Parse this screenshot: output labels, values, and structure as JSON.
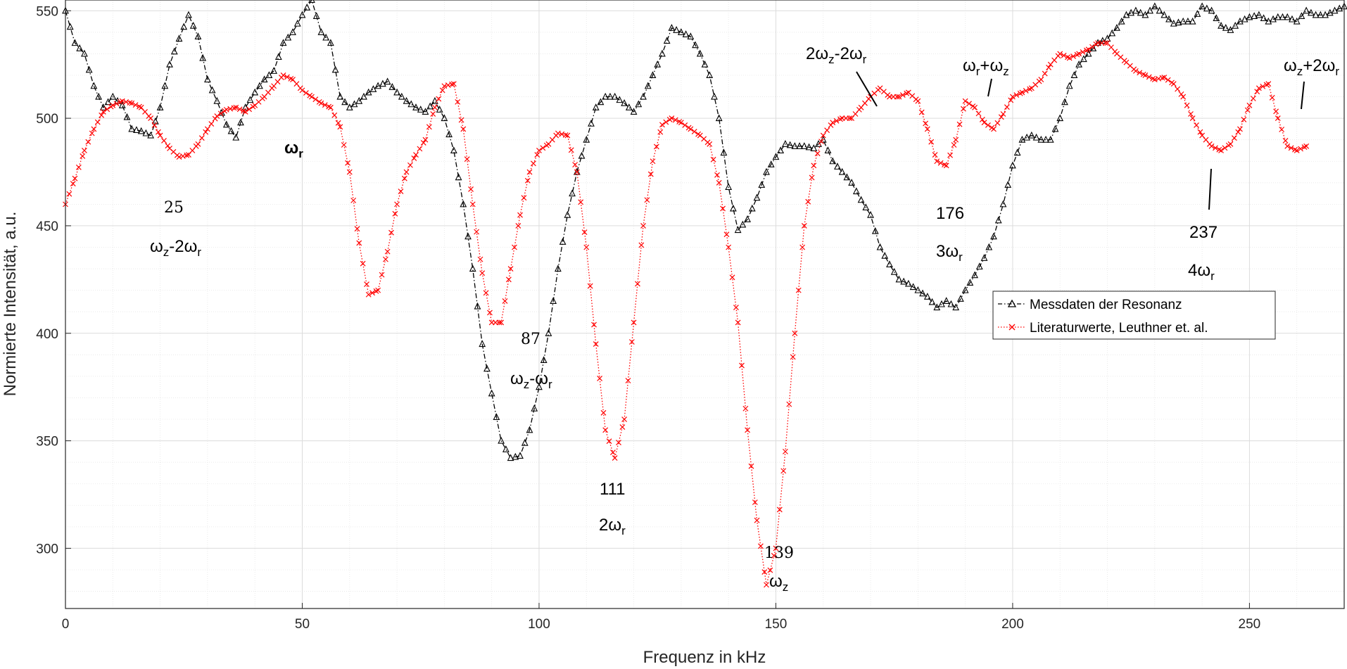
{
  "chart_data": {
    "type": "line",
    "xlabel": "Frequenz in kHz",
    "ylabel": "Normierte Intensität, a.u.",
    "xlim": [
      0,
      270
    ],
    "ylim": [
      272,
      555
    ],
    "xticks": [
      0,
      50,
      100,
      150,
      200,
      250
    ],
    "yticks": [
      300,
      350,
      400,
      450,
      500,
      550
    ],
    "grid": true,
    "minor_grid": true,
    "legend_position": "middle-right",
    "series": [
      {
        "name": "Messdaten der Resonanz",
        "color": "#000000",
        "line_style": "dash-dot",
        "marker": "triangle-up",
        "anchors": [
          [
            0,
            550
          ],
          [
            2,
            535
          ],
          [
            4,
            530
          ],
          [
            6,
            515
          ],
          [
            8,
            505
          ],
          [
            10,
            510
          ],
          [
            12,
            506
          ],
          [
            14,
            495
          ],
          [
            16,
            494
          ],
          [
            18,
            492
          ],
          [
            20,
            505
          ],
          [
            22,
            525
          ],
          [
            24,
            537
          ],
          [
            26,
            548
          ],
          [
            28,
            538
          ],
          [
            30,
            518
          ],
          [
            32,
            508
          ],
          [
            34,
            497
          ],
          [
            36,
            491
          ],
          [
            38,
            505
          ],
          [
            40,
            512
          ],
          [
            42,
            518
          ],
          [
            44,
            522
          ],
          [
            46,
            535
          ],
          [
            48,
            540
          ],
          [
            50,
            548
          ],
          [
            52,
            555
          ],
          [
            54,
            540
          ],
          [
            56,
            535
          ],
          [
            58,
            510
          ],
          [
            60,
            505
          ],
          [
            62,
            508
          ],
          [
            64,
            512
          ],
          [
            66,
            515
          ],
          [
            68,
            517
          ],
          [
            70,
            512
          ],
          [
            72,
            508
          ],
          [
            74,
            505
          ],
          [
            76,
            503
          ],
          [
            78,
            508
          ],
          [
            80,
            500
          ],
          [
            82,
            485
          ],
          [
            84,
            460
          ],
          [
            86,
            430
          ],
          [
            88,
            395
          ],
          [
            90,
            372
          ],
          [
            92,
            350
          ],
          [
            94,
            342
          ],
          [
            96,
            343
          ],
          [
            98,
            355
          ],
          [
            100,
            375
          ],
          [
            102,
            400
          ],
          [
            104,
            430
          ],
          [
            106,
            455
          ],
          [
            108,
            475
          ],
          [
            110,
            490
          ],
          [
            112,
            505
          ],
          [
            114,
            510
          ],
          [
            116,
            510
          ],
          [
            118,
            507
          ],
          [
            120,
            503
          ],
          [
            122,
            510
          ],
          [
            124,
            520
          ],
          [
            126,
            530
          ],
          [
            128,
            542
          ],
          [
            130,
            540
          ],
          [
            132,
            538
          ],
          [
            134,
            530
          ],
          [
            136,
            520
          ],
          [
            138,
            500
          ],
          [
            140,
            468
          ],
          [
            142,
            448
          ],
          [
            144,
            453
          ],
          [
            146,
            463
          ],
          [
            148,
            475
          ],
          [
            150,
            482
          ],
          [
            152,
            488
          ],
          [
            154,
            487
          ],
          [
            156,
            487
          ],
          [
            158,
            486
          ],
          [
            160,
            490
          ],
          [
            162,
            480
          ],
          [
            164,
            475
          ],
          [
            166,
            470
          ],
          [
            168,
            462
          ],
          [
            170,
            455
          ],
          [
            172,
            440
          ],
          [
            174,
            432
          ],
          [
            176,
            425
          ],
          [
            178,
            423
          ],
          [
            180,
            420
          ],
          [
            182,
            417
          ],
          [
            184,
            412
          ],
          [
            186,
            415
          ],
          [
            188,
            412
          ],
          [
            190,
            420
          ],
          [
            192,
            427
          ],
          [
            194,
            435
          ],
          [
            196,
            445
          ],
          [
            198,
            460
          ],
          [
            200,
            478
          ],
          [
            202,
            490
          ],
          [
            204,
            492
          ],
          [
            206,
            490
          ],
          [
            208,
            490
          ],
          [
            210,
            500
          ],
          [
            212,
            515
          ],
          [
            214,
            525
          ],
          [
            216,
            530
          ],
          [
            218,
            535
          ],
          [
            220,
            537
          ],
          [
            222,
            542
          ],
          [
            224,
            548
          ],
          [
            226,
            550
          ],
          [
            228,
            548
          ],
          [
            230,
            552
          ],
          [
            232,
            548
          ],
          [
            234,
            544
          ],
          [
            236,
            545
          ],
          [
            238,
            545
          ],
          [
            240,
            552
          ],
          [
            242,
            550
          ],
          [
            244,
            543
          ],
          [
            246,
            541
          ],
          [
            248,
            545
          ],
          [
            250,
            547
          ],
          [
            252,
            548
          ],
          [
            254,
            545
          ],
          [
            256,
            547
          ],
          [
            258,
            547
          ],
          [
            260,
            545
          ],
          [
            262,
            550
          ],
          [
            264,
            548
          ],
          [
            266,
            548
          ],
          [
            268,
            550
          ],
          [
            270,
            552
          ]
        ]
      },
      {
        "name": "Literaturwerte, Leuthner et. al.",
        "color": "#ff0000",
        "line_style": "dotted",
        "marker": "x",
        "anchors": [
          [
            0,
            460
          ],
          [
            2,
            472
          ],
          [
            4,
            485
          ],
          [
            6,
            495
          ],
          [
            8,
            503
          ],
          [
            10,
            506
          ],
          [
            12,
            508
          ],
          [
            14,
            507
          ],
          [
            16,
            505
          ],
          [
            18,
            500
          ],
          [
            20,
            492
          ],
          [
            22,
            486
          ],
          [
            24,
            482
          ],
          [
            26,
            483
          ],
          [
            28,
            488
          ],
          [
            30,
            495
          ],
          [
            32,
            501
          ],
          [
            34,
            504
          ],
          [
            36,
            505
          ],
          [
            38,
            503
          ],
          [
            40,
            506
          ],
          [
            42,
            510
          ],
          [
            44,
            515
          ],
          [
            46,
            520
          ],
          [
            48,
            518
          ],
          [
            50,
            513
          ],
          [
            52,
            510
          ],
          [
            54,
            507
          ],
          [
            56,
            505
          ],
          [
            58,
            496
          ],
          [
            60,
            475
          ],
          [
            62,
            442
          ],
          [
            64,
            418
          ],
          [
            66,
            420
          ],
          [
            68,
            438
          ],
          [
            70,
            460
          ],
          [
            72,
            475
          ],
          [
            74,
            483
          ],
          [
            76,
            490
          ],
          [
            78,
            505
          ],
          [
            80,
            515
          ],
          [
            82,
            516
          ],
          [
            84,
            495
          ],
          [
            86,
            460
          ],
          [
            88,
            428
          ],
          [
            90,
            405
          ],
          [
            92,
            405
          ],
          [
            94,
            430
          ],
          [
            96,
            455
          ],
          [
            98,
            475
          ],
          [
            100,
            485
          ],
          [
            102,
            488
          ],
          [
            104,
            493
          ],
          [
            106,
            492
          ],
          [
            108,
            475
          ],
          [
            110,
            440
          ],
          [
            112,
            395
          ],
          [
            114,
            355
          ],
          [
            116,
            342
          ],
          [
            118,
            360
          ],
          [
            120,
            405
          ],
          [
            122,
            450
          ],
          [
            124,
            480
          ],
          [
            126,
            497
          ],
          [
            128,
            500
          ],
          [
            130,
            498
          ],
          [
            132,
            495
          ],
          [
            134,
            492
          ],
          [
            136,
            488
          ],
          [
            138,
            470
          ],
          [
            140,
            440
          ],
          [
            142,
            405
          ],
          [
            144,
            355
          ],
          [
            146,
            313
          ],
          [
            148,
            283
          ],
          [
            150,
            300
          ],
          [
            152,
            345
          ],
          [
            154,
            400
          ],
          [
            156,
            450
          ],
          [
            158,
            478
          ],
          [
            160,
            492
          ],
          [
            162,
            498
          ],
          [
            164,
            500
          ],
          [
            166,
            500
          ],
          [
            168,
            505
          ],
          [
            170,
            510
          ],
          [
            172,
            514
          ],
          [
            174,
            510
          ],
          [
            176,
            510
          ],
          [
            178,
            512
          ],
          [
            180,
            508
          ],
          [
            182,
            495
          ],
          [
            184,
            480
          ],
          [
            186,
            478
          ],
          [
            188,
            490
          ],
          [
            190,
            508
          ],
          [
            192,
            505
          ],
          [
            194,
            498
          ],
          [
            196,
            495
          ],
          [
            198,
            502
          ],
          [
            200,
            510
          ],
          [
            202,
            512
          ],
          [
            204,
            514
          ],
          [
            206,
            518
          ],
          [
            208,
            525
          ],
          [
            210,
            530
          ],
          [
            212,
            528
          ],
          [
            214,
            530
          ],
          [
            216,
            532
          ],
          [
            218,
            535
          ],
          [
            220,
            535
          ],
          [
            222,
            530
          ],
          [
            224,
            526
          ],
          [
            226,
            522
          ],
          [
            228,
            520
          ],
          [
            230,
            518
          ],
          [
            232,
            519
          ],
          [
            234,
            516
          ],
          [
            236,
            510
          ],
          [
            238,
            500
          ],
          [
            240,
            492
          ],
          [
            242,
            487
          ],
          [
            244,
            485
          ],
          [
            246,
            488
          ],
          [
            248,
            495
          ],
          [
            250,
            506
          ],
          [
            252,
            514
          ],
          [
            254,
            516
          ],
          [
            256,
            500
          ],
          [
            258,
            487
          ],
          [
            260,
            485
          ],
          [
            262,
            487
          ]
        ]
      }
    ],
    "annotations": [
      {
        "number": "25",
        "label": "ω_z-2ω_r"
      },
      {
        "number": "",
        "label": "ω_r"
      },
      {
        "number": "87",
        "label": "ω_z-ω_r"
      },
      {
        "number": "111",
        "label": "2ω_r"
      },
      {
        "number": "139",
        "label": "ω_z"
      },
      {
        "number": "",
        "label": "2ω_z-2ω_r"
      },
      {
        "number": "176",
        "label": "3ω_r"
      },
      {
        "number": "",
        "label": "ω_r+ω_z"
      },
      {
        "number": "237",
        "label": "4ω_r"
      },
      {
        "number": "",
        "label": "ω_z+2ω_r"
      }
    ]
  }
}
